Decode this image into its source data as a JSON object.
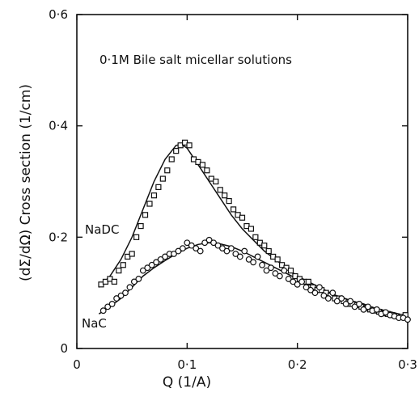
{
  "chart_data": {
    "type": "scatter",
    "annotation": "0·1M  Bile salt micellar solutions",
    "xlabel": "Q (1/A)",
    "ylabel": "(dΣ/dΩ) Cross section (1/cm)",
    "xlim": [
      0,
      0.3
    ],
    "ylim": [
      0,
      0.6
    ],
    "x_ticks": [
      0,
      0.1,
      0.2,
      0.3
    ],
    "x_tick_labels": [
      "0",
      "0·1",
      "0·2",
      "0·3"
    ],
    "y_ticks": [
      0,
      0.2,
      0.4,
      0.6
    ],
    "y_tick_labels": [
      "0",
      "0·2",
      "0·4",
      "0·6"
    ],
    "grid": false,
    "series": [
      {
        "name": "NaDC",
        "marker": "square",
        "fit_x": [
          0.02,
          0.03,
          0.04,
          0.05,
          0.06,
          0.07,
          0.08,
          0.09,
          0.095,
          0.1,
          0.11,
          0.12,
          0.13,
          0.14,
          0.15,
          0.16,
          0.17,
          0.18,
          0.19,
          0.2,
          0.21,
          0.22,
          0.23,
          0.24,
          0.25,
          0.26,
          0.27,
          0.28,
          0.29,
          0.3
        ],
        "fit_y": [
          0.11,
          0.13,
          0.16,
          0.2,
          0.25,
          0.3,
          0.34,
          0.365,
          0.367,
          0.36,
          0.33,
          0.3,
          0.27,
          0.24,
          0.215,
          0.195,
          0.175,
          0.16,
          0.145,
          0.13,
          0.12,
          0.11,
          0.1,
          0.09,
          0.085,
          0.08,
          0.072,
          0.066,
          0.061,
          0.057
        ],
        "x": [
          0.022,
          0.026,
          0.03,
          0.034,
          0.038,
          0.042,
          0.046,
          0.05,
          0.054,
          0.058,
          0.062,
          0.066,
          0.07,
          0.074,
          0.078,
          0.082,
          0.086,
          0.09,
          0.094,
          0.098,
          0.102,
          0.106,
          0.11,
          0.114,
          0.118,
          0.122,
          0.126,
          0.13,
          0.134,
          0.138,
          0.142,
          0.146,
          0.15,
          0.154,
          0.158,
          0.162,
          0.166,
          0.17,
          0.174,
          0.178,
          0.182,
          0.186,
          0.19,
          0.194,
          0.198,
          0.202,
          0.206,
          0.21,
          0.214,
          0.218,
          0.222,
          0.226,
          0.23,
          0.234,
          0.238,
          0.242,
          0.246,
          0.25,
          0.254,
          0.258,
          0.262,
          0.266,
          0.27,
          0.274,
          0.278,
          0.282,
          0.286,
          0.29,
          0.294,
          0.298
        ],
        "y": [
          0.115,
          0.12,
          0.125,
          0.12,
          0.14,
          0.15,
          0.165,
          0.17,
          0.2,
          0.22,
          0.24,
          0.26,
          0.275,
          0.29,
          0.305,
          0.32,
          0.34,
          0.355,
          0.365,
          0.37,
          0.365,
          0.34,
          0.335,
          0.33,
          0.32,
          0.305,
          0.3,
          0.285,
          0.275,
          0.265,
          0.25,
          0.24,
          0.235,
          0.22,
          0.215,
          0.2,
          0.19,
          0.185,
          0.175,
          0.165,
          0.16,
          0.15,
          0.145,
          0.14,
          0.13,
          0.125,
          0.12,
          0.12,
          0.11,
          0.105,
          0.105,
          0.1,
          0.095,
          0.09,
          0.09,
          0.085,
          0.08,
          0.08,
          0.078,
          0.075,
          0.072,
          0.07,
          0.068,
          0.066,
          0.063,
          0.062,
          0.06,
          0.058,
          0.057,
          0.06
        ]
      },
      {
        "name": "NaC",
        "marker": "circle",
        "fit_x": [
          0.02,
          0.03,
          0.04,
          0.05,
          0.06,
          0.07,
          0.08,
          0.09,
          0.1,
          0.11,
          0.12,
          0.13,
          0.14,
          0.15,
          0.16,
          0.17,
          0.18,
          0.19,
          0.2,
          0.21,
          0.22,
          0.23,
          0.24,
          0.25,
          0.26,
          0.27,
          0.28,
          0.29,
          0.3
        ],
        "fit_y": [
          0.062,
          0.075,
          0.09,
          0.11,
          0.13,
          0.145,
          0.158,
          0.17,
          0.18,
          0.187,
          0.19,
          0.188,
          0.183,
          0.175,
          0.165,
          0.155,
          0.145,
          0.135,
          0.125,
          0.115,
          0.107,
          0.099,
          0.092,
          0.085,
          0.079,
          0.073,
          0.068,
          0.063,
          0.058
        ],
        "x": [
          0.024,
          0.028,
          0.032,
          0.036,
          0.04,
          0.044,
          0.048,
          0.052,
          0.056,
          0.06,
          0.064,
          0.068,
          0.072,
          0.076,
          0.08,
          0.084,
          0.088,
          0.092,
          0.096,
          0.1,
          0.104,
          0.108,
          0.112,
          0.116,
          0.12,
          0.124,
          0.128,
          0.132,
          0.136,
          0.14,
          0.144,
          0.148,
          0.152,
          0.156,
          0.16,
          0.164,
          0.168,
          0.172,
          0.176,
          0.18,
          0.184,
          0.188,
          0.192,
          0.196,
          0.2,
          0.204,
          0.208,
          0.212,
          0.216,
          0.22,
          0.224,
          0.228,
          0.232,
          0.236,
          0.24,
          0.244,
          0.248,
          0.252,
          0.256,
          0.26,
          0.264,
          0.268,
          0.272,
          0.276,
          0.28,
          0.284,
          0.288,
          0.292,
          0.296,
          0.3
        ],
        "y": [
          0.068,
          0.075,
          0.08,
          0.09,
          0.095,
          0.1,
          0.11,
          0.12,
          0.125,
          0.14,
          0.145,
          0.15,
          0.155,
          0.16,
          0.165,
          0.17,
          0.17,
          0.175,
          0.18,
          0.19,
          0.185,
          0.18,
          0.175,
          0.19,
          0.195,
          0.19,
          0.185,
          0.18,
          0.175,
          0.18,
          0.17,
          0.165,
          0.175,
          0.16,
          0.155,
          0.165,
          0.15,
          0.14,
          0.145,
          0.135,
          0.13,
          0.14,
          0.125,
          0.12,
          0.115,
          0.12,
          0.11,
          0.105,
          0.1,
          0.11,
          0.095,
          0.09,
          0.1,
          0.085,
          0.09,
          0.08,
          0.085,
          0.075,
          0.08,
          0.07,
          0.075,
          0.068,
          0.07,
          0.062,
          0.065,
          0.06,
          0.058,
          0.055,
          0.055,
          0.052
        ]
      }
    ]
  }
}
